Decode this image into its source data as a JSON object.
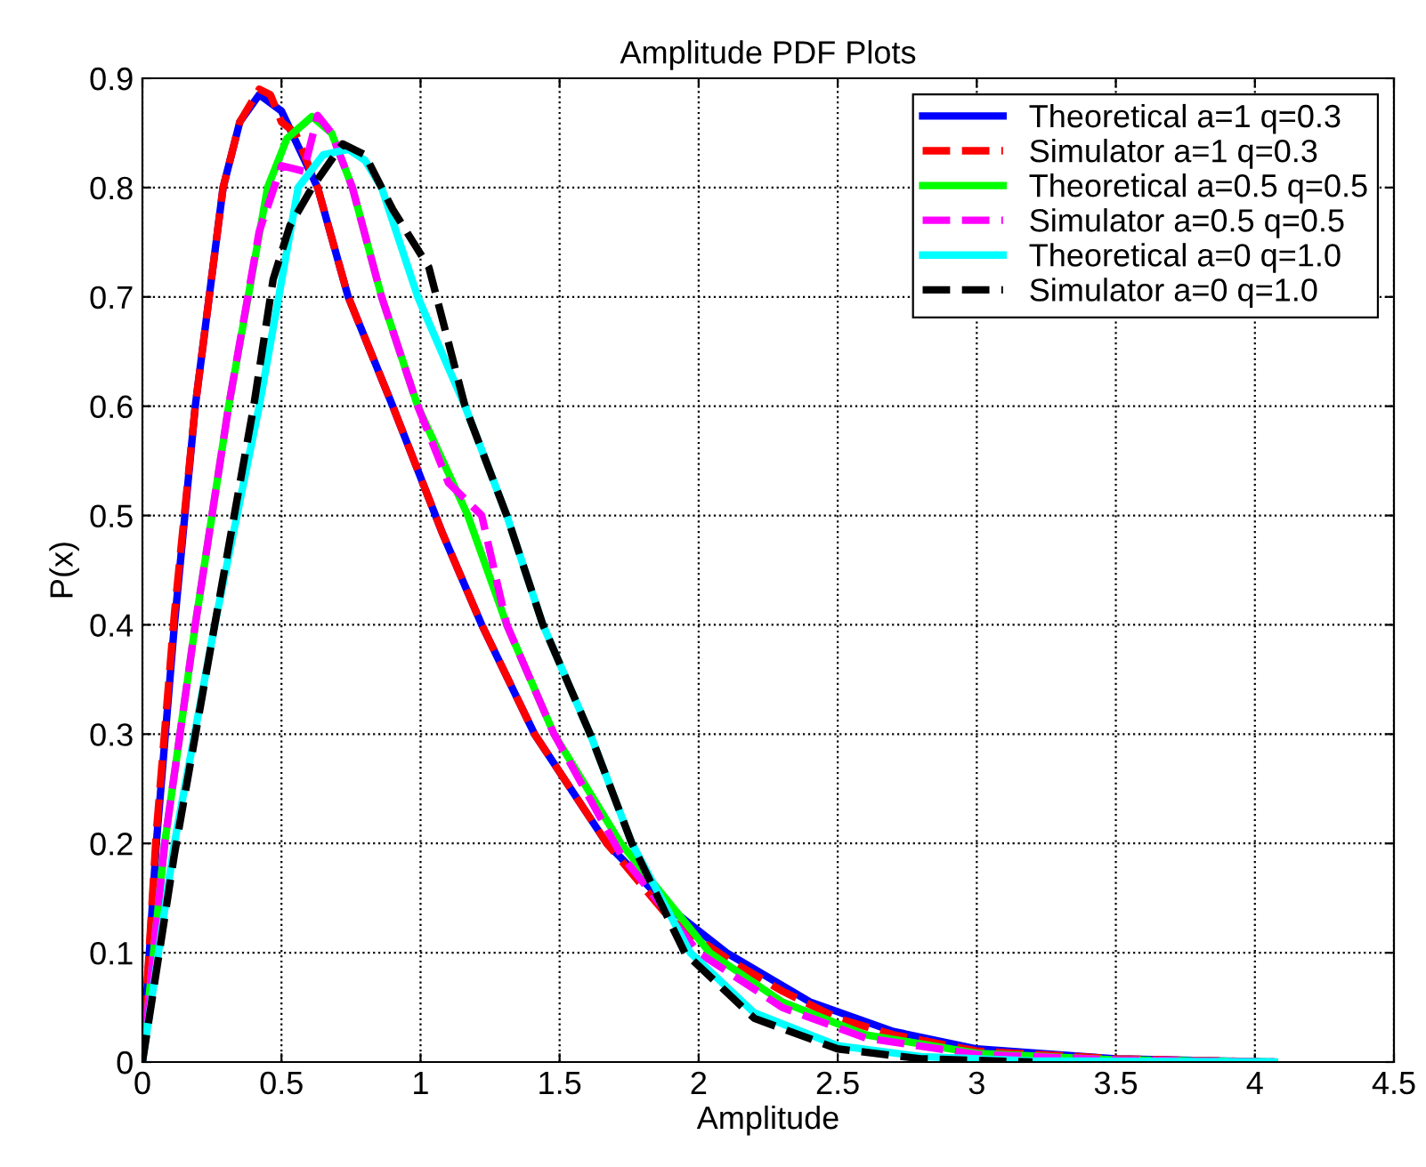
{
  "chart_data": {
    "type": "line",
    "title": "Amplitude PDF Plots",
    "xlabel": "Amplitude",
    "ylabel": "P(x)",
    "xlim": [
      0,
      4.5
    ],
    "xticks": [
      0,
      0.5,
      1,
      1.5,
      2,
      2.5,
      3,
      3.5,
      4,
      4.5
    ],
    "ylim": [
      0,
      0.9
    ],
    "yticks": [
      0,
      0.1,
      0.2,
      0.3,
      0.4,
      0.5,
      0.6,
      0.7,
      0.8,
      0.9
    ],
    "grid": true,
    "legend": "top right",
    "series": [
      {
        "name": "Theoretical a=1 q=0.3",
        "color": "#0000ff",
        "line_style": "solid",
        "x": [
          0,
          0.05,
          0.115,
          0.19,
          0.29,
          0.35,
          0.42,
          0.5,
          0.63,
          0.74,
          0.9,
          1.08,
          1.22,
          1.41,
          1.67,
          1.9,
          2.1,
          2.4,
          2.7,
          3.0,
          3.5,
          4.07
        ],
        "values": [
          0,
          0.2,
          0.4,
          0.6,
          0.8,
          0.86,
          0.885,
          0.87,
          0.8,
          0.7,
          0.6,
          0.483,
          0.4,
          0.3,
          0.2,
          0.14,
          0.1,
          0.055,
          0.028,
          0.012,
          0.003,
          0
        ]
      },
      {
        "name": "Simulator a=1 q=0.3",
        "color": "#ff0000",
        "line_style": "dashed",
        "x": [
          0,
          0.05,
          0.115,
          0.19,
          0.29,
          0.35,
          0.42,
          0.46,
          0.5,
          0.55,
          0.63,
          0.74,
          0.9,
          1.08,
          1.22,
          1.41,
          1.67,
          1.9,
          2.1,
          2.3,
          2.5,
          2.7,
          3.0,
          3.5,
          4.07
        ],
        "values": [
          0,
          0.21,
          0.41,
          0.6,
          0.8,
          0.86,
          0.89,
          0.885,
          0.86,
          0.85,
          0.8,
          0.7,
          0.6,
          0.483,
          0.4,
          0.3,
          0.2,
          0.13,
          0.095,
          0.065,
          0.04,
          0.025,
          0.01,
          0.003,
          0
        ]
      },
      {
        "name": "Theoretical a=0.5 q=0.5",
        "color": "#00ff00",
        "line_style": "solid",
        "x": [
          0,
          0.08,
          0.19,
          0.31,
          0.45,
          0.52,
          0.61,
          0.68,
          0.755,
          0.86,
          0.99,
          1.17,
          1.31,
          1.48,
          1.72,
          2.04,
          2.3,
          2.6,
          3.0,
          3.5,
          4.07
        ],
        "values": [
          0,
          0.2,
          0.4,
          0.6,
          0.8,
          0.845,
          0.865,
          0.85,
          0.8,
          0.7,
          0.6,
          0.5,
          0.4,
          0.3,
          0.2,
          0.1,
          0.055,
          0.025,
          0.008,
          0.002,
          0
        ]
      },
      {
        "name": "Simulator a=0.5 q=0.5",
        "color": "#ff00ff",
        "line_style": "dashed",
        "x": [
          0,
          0.08,
          0.19,
          0.31,
          0.42,
          0.5,
          0.58,
          0.63,
          0.68,
          0.755,
          0.86,
          0.99,
          1.1,
          1.22,
          1.31,
          1.48,
          1.72,
          2.0,
          2.3,
          2.6,
          3.0,
          3.5,
          4.07
        ],
        "values": [
          0,
          0.2,
          0.4,
          0.6,
          0.76,
          0.82,
          0.815,
          0.866,
          0.85,
          0.8,
          0.7,
          0.6,
          0.53,
          0.5,
          0.4,
          0.3,
          0.19,
          0.1,
          0.05,
          0.022,
          0.007,
          0.002,
          0
        ]
      },
      {
        "name": "Theoretical a=0 q=1.0",
        "color": "#00ffff",
        "line_style": "solid",
        "x": [
          0,
          0.115,
          0.26,
          0.42,
          0.56,
          0.65,
          0.74,
          0.8,
          0.86,
          0.99,
          1.16,
          1.31,
          1.44,
          1.61,
          1.76,
          1.97,
          2.2,
          2.5,
          2.8,
          3.2,
          4.07
        ],
        "values": [
          0,
          0.2,
          0.4,
          0.6,
          0.8,
          0.83,
          0.835,
          0.825,
          0.8,
          0.7,
          0.6,
          0.5,
          0.4,
          0.3,
          0.2,
          0.1,
          0.045,
          0.015,
          0.005,
          0.001,
          0
        ]
      },
      {
        "name": "Simulator a=0 q=1.0",
        "color": "#000000",
        "line_style": "dashed",
        "x": [
          0,
          0.115,
          0.26,
          0.4,
          0.47,
          0.53,
          0.61,
          0.72,
          0.8,
          0.9,
          1.03,
          1.16,
          1.31,
          1.44,
          1.61,
          1.76,
          1.95,
          2.2,
          2.5,
          2.8,
          3.2
        ],
        "values": [
          0,
          0.19,
          0.4,
          0.6,
          0.716,
          0.765,
          0.8,
          0.84,
          0.83,
          0.78,
          0.727,
          0.6,
          0.5,
          0.4,
          0.3,
          0.2,
          0.1,
          0.04,
          0.012,
          0.003,
          0
        ]
      }
    ]
  }
}
